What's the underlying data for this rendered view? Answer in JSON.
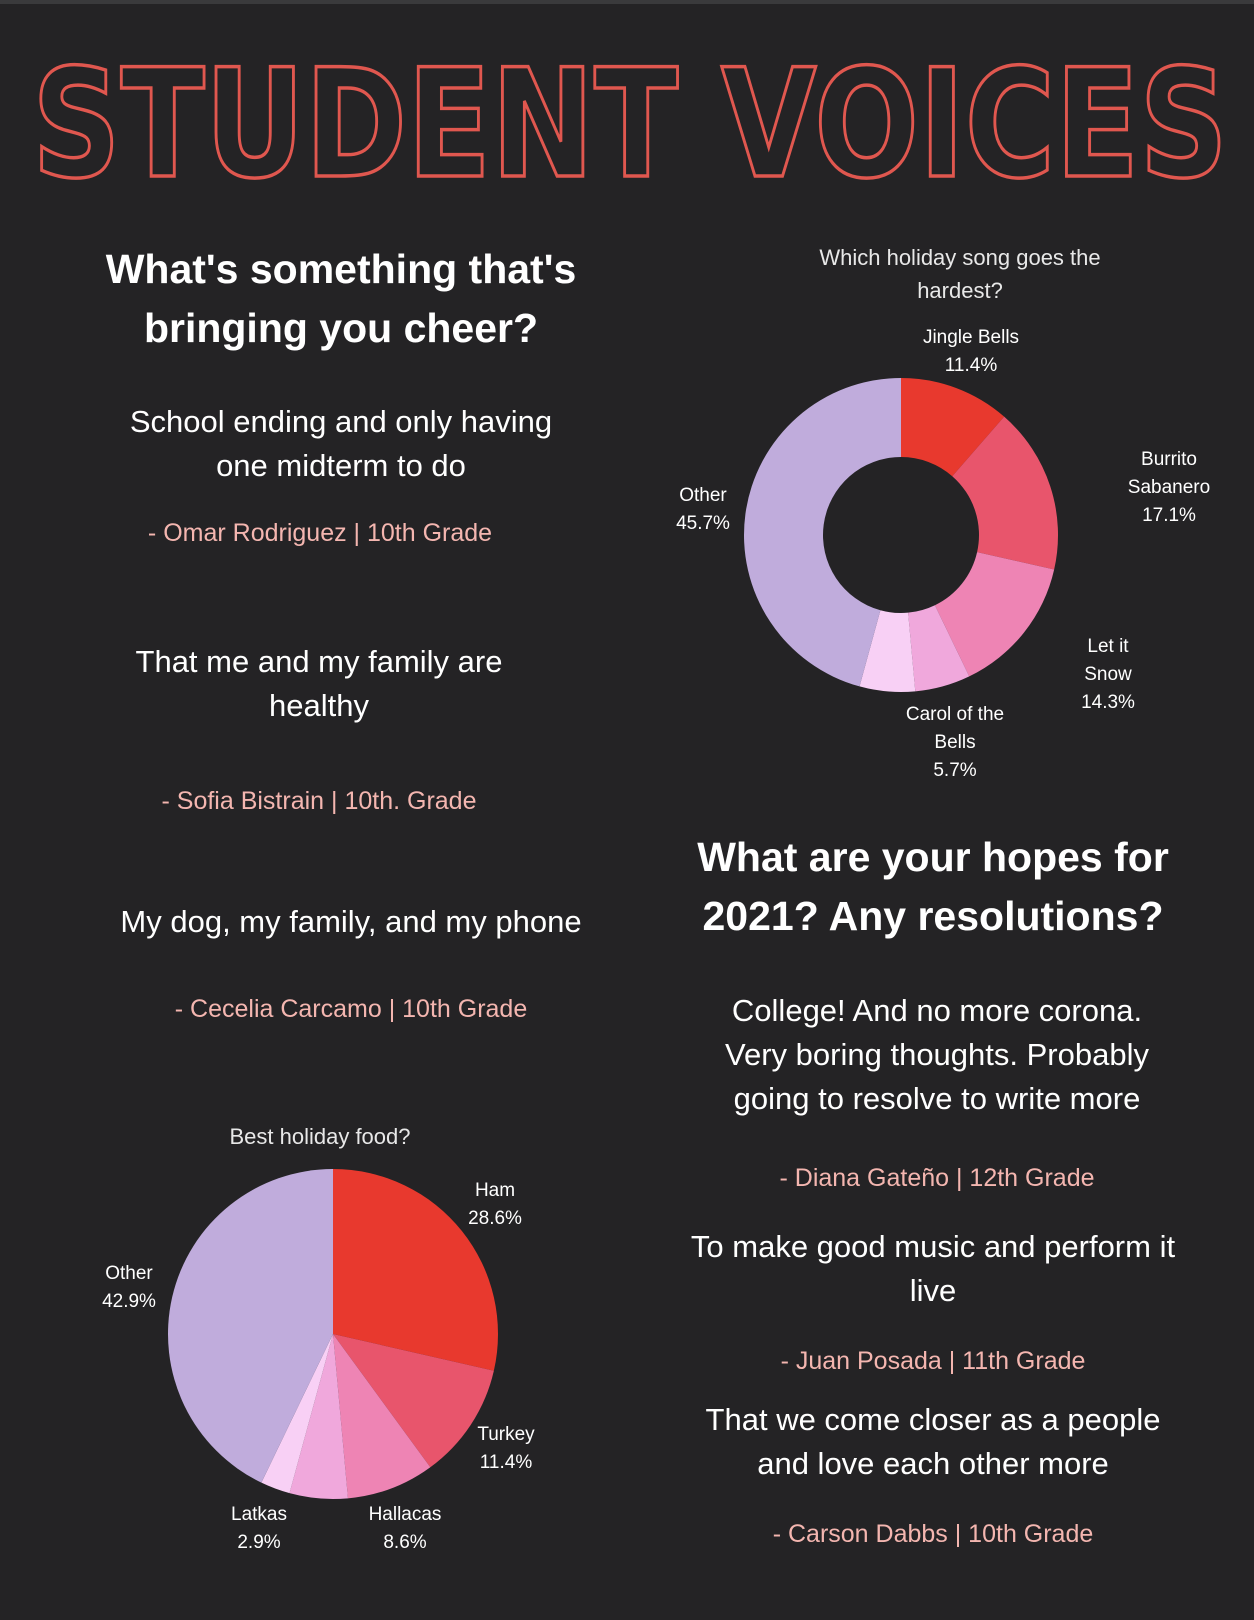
{
  "title": "STUDENT VOICES",
  "cheer": {
    "question": "What's something that's bringing you cheer?",
    "answers": [
      {
        "text": "School ending and only having one midterm to do",
        "author": "- Omar Rodriguez | 10th Grade"
      },
      {
        "text": "That me and my family are healthy",
        "author": "- Sofia Bistrain | 10th. Grade"
      },
      {
        "text": "My dog, my family, and my phone",
        "author": "- Cecelia Carcamo | 10th Grade"
      }
    ]
  },
  "hopes": {
    "question": "What are your hopes for 2021? Any resolutions?",
    "answers": [
      {
        "text": "College! And no more corona. Very boring thoughts. Probably going to resolve to write more",
        "author": "- Diana Gateño | 12th Grade"
      },
      {
        "text": "To make good music and perform it live",
        "author": "- Juan Posada | 11th Grade"
      },
      {
        "text": "That we come closer as a people and love each other more",
        "author": "- Carson Dabbs | 10th Grade"
      }
    ]
  },
  "chart_data": [
    {
      "type": "donut",
      "title": "Which holiday song goes the hardest?",
      "categories": [
        "Jingle Bells",
        "Burrito Sabanero",
        "Let it Snow",
        null,
        "Carol of the Bells",
        "Other"
      ],
      "values": [
        11.4,
        17.1,
        14.3,
        5.7,
        5.7,
        45.7
      ],
      "value_labels": [
        "11.4%",
        "17.1%",
        "14.3%",
        null,
        "5.7%",
        "45.7%"
      ],
      "colors": [
        "#e8392e",
        "#e8556c",
        "#ee84b4",
        "#f0a8dc",
        "#f8d0f5",
        "#c0acdc"
      ]
    },
    {
      "type": "pie",
      "title": "Best holiday food?",
      "categories": [
        "Ham",
        "Turkey",
        "Hallacas",
        null,
        "Latkas",
        "Other"
      ],
      "values": [
        28.6,
        11.4,
        8.6,
        5.7,
        2.9,
        42.9
      ],
      "value_labels": [
        "28.6%",
        "11.4%",
        "8.6%",
        null,
        "2.9%",
        "42.9%"
      ],
      "colors": [
        "#e8392e",
        "#e8556c",
        "#ee84b4",
        "#f0a8dc",
        "#f8d0f5",
        "#c0acdc"
      ]
    }
  ]
}
